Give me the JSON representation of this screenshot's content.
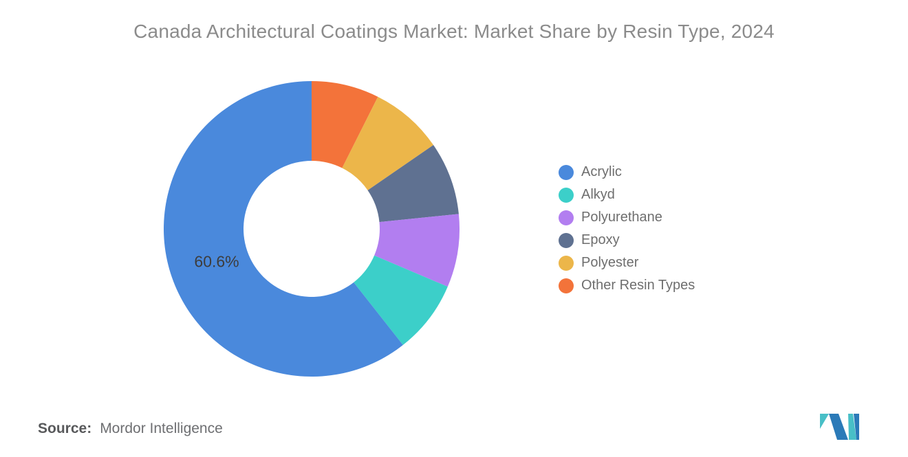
{
  "title": "Canada Architectural Coatings Market: Market Share by Resin Type, 2024",
  "source": {
    "label": "Source:",
    "value": "Mordor Intelligence"
  },
  "logo": {
    "teal": "#48BFC7",
    "blue": "#2B7AB8"
  },
  "chart_data": {
    "type": "pie",
    "donut": true,
    "title": "Canada Architectural Coatings Market: Market Share by Resin Type, 2024",
    "categories": [
      "Acrylic",
      "Alkyd",
      "Polyurethane",
      "Epoxy",
      "Polyester",
      "Other Resin Types"
    ],
    "values": [
      60.6,
      8.0,
      8.0,
      8.0,
      8.0,
      7.4
    ],
    "colors": [
      "#4A89DC",
      "#3CCFC9",
      "#B27EF0",
      "#5F7191",
      "#ECB64A",
      "#F3733A"
    ],
    "data_label": {
      "category": "Acrylic",
      "text": "60.6%"
    },
    "legend_position": "right",
    "start_angle": "top",
    "clockwise_from_top_order": [
      "Other Resin Types",
      "Polyester",
      "Epoxy",
      "Polyurethane",
      "Alkyd",
      "Acrylic"
    ],
    "inner_radius_ratio": 0.46
  }
}
